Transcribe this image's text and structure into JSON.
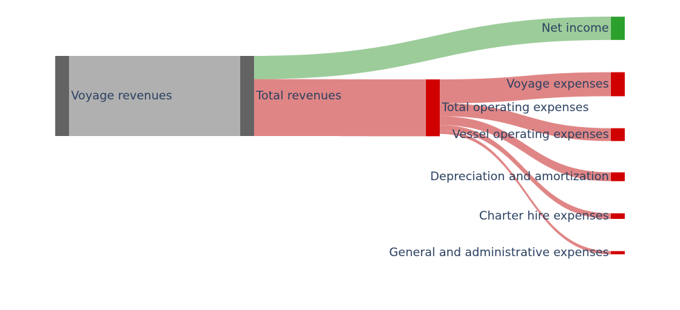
{
  "chart_data": {
    "type": "sankey",
    "nodes": [
      {
        "id": "voyage_revenues",
        "label": "Voyage revenues",
        "color": "#636363",
        "column": 0,
        "label_side": "right"
      },
      {
        "id": "total_revenues",
        "label": "Total revenues",
        "color": "#636363",
        "column": 1,
        "label_side": "right"
      },
      {
        "id": "total_operating_expenses",
        "label": "Total operating expenses",
        "color": "#d00000",
        "column": 2,
        "label_side": "right"
      },
      {
        "id": "net_income",
        "label": "Net income",
        "color": "#2ca02c",
        "column": 3,
        "label_side": "left"
      },
      {
        "id": "voyage_expenses",
        "label": "Voyage expenses",
        "color": "#d00000",
        "column": 3,
        "label_side": "left"
      },
      {
        "id": "vessel_operating_expenses",
        "label": "Vessel operating expenses",
        "color": "#d00000",
        "column": 3,
        "label_side": "left"
      },
      {
        "id": "depreciation_and_amortization",
        "label": "Depreciation and amortization",
        "color": "#d00000",
        "column": 3,
        "label_side": "left"
      },
      {
        "id": "charter_hire_expenses",
        "label": "Charter hire expenses",
        "color": "#d00000",
        "column": 3,
        "label_side": "left"
      },
      {
        "id": "general_and_administrative_expenses",
        "label": "General and administrative expenses",
        "color": "#d00000",
        "column": 3,
        "label_side": "left"
      }
    ],
    "links": [
      {
        "source": "voyage_revenues",
        "target": "total_revenues",
        "value": 100,
        "color": "#b0b0b0"
      },
      {
        "source": "total_revenues",
        "target": "net_income",
        "value": 29,
        "color": "#9ccc9a"
      },
      {
        "source": "total_revenues",
        "target": "total_operating_expenses",
        "value": 71,
        "color": "#e08585"
      },
      {
        "source": "total_operating_expenses",
        "target": "voyage_expenses",
        "value": 30,
        "color": "#e08585"
      },
      {
        "source": "total_operating_expenses",
        "target": "vessel_operating_expenses",
        "value": 16,
        "color": "#e08585"
      },
      {
        "source": "total_operating_expenses",
        "target": "depreciation_and_amortization",
        "value": 11,
        "color": "#e08585"
      },
      {
        "source": "total_operating_expenses",
        "target": "charter_hire_expenses",
        "value": 7,
        "color": "#e08585"
      },
      {
        "source": "total_operating_expenses",
        "target": "general_and_administrative_expenses",
        "value": 4,
        "color": "#e08585"
      }
    ]
  }
}
